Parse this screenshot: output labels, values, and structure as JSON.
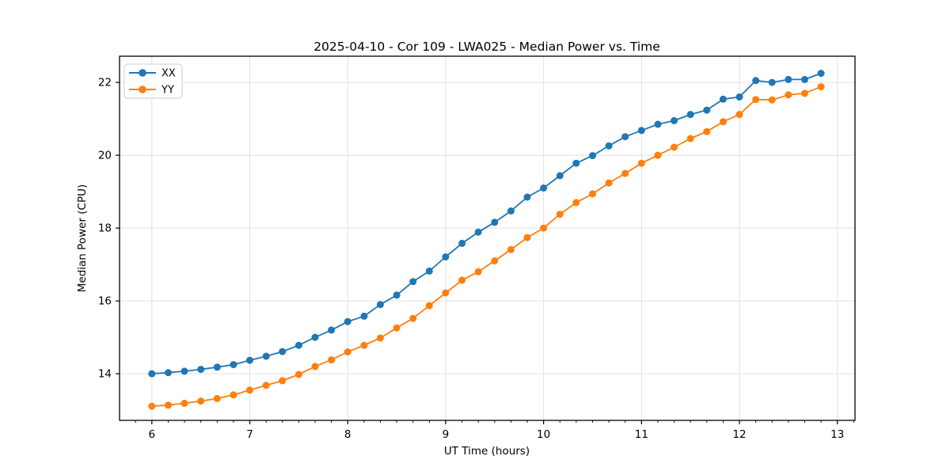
{
  "title": "2025-04-10 - Cor 109 - LWA025 - Median Power vs. Time",
  "colors": {
    "series_xx": "#1f77b4",
    "series_yy": "#ff7f0e",
    "grid": "#e0e0e0",
    "spine": "#000000",
    "legend_border": "#cccccc",
    "background": "#ffffff"
  },
  "legend": {
    "items": [
      {
        "label": "XX",
        "color": "#1f77b4"
      },
      {
        "label": "YY",
        "color": "#ff7f0e"
      }
    ]
  },
  "chart_data": {
    "type": "line",
    "title": "2025-04-10 - Cor 109 - LWA025 - Median Power vs. Time",
    "xlabel": "UT Time (hours)",
    "ylabel": "Median Power (CPU)",
    "xlim": [
      5.67,
      13.18
    ],
    "ylim": [
      12.72,
      22.72
    ],
    "x_ticks": [
      6,
      7,
      8,
      9,
      10,
      11,
      12,
      13
    ],
    "y_ticks": [
      14,
      16,
      18,
      20,
      22
    ],
    "x_minor_tick_step": 0.16667,
    "grid": true,
    "legend_position": "upper-left",
    "marker": "circle",
    "x": [
      6.0,
      6.167,
      6.333,
      6.5,
      6.667,
      6.833,
      7.0,
      7.167,
      7.333,
      7.5,
      7.667,
      7.833,
      8.0,
      8.167,
      8.333,
      8.5,
      8.667,
      8.833,
      9.0,
      9.167,
      9.333,
      9.5,
      9.667,
      9.833,
      10.0,
      10.167,
      10.333,
      10.5,
      10.667,
      10.833,
      11.0,
      11.167,
      11.333,
      11.5,
      11.667,
      11.833,
      12.0,
      12.167,
      12.333,
      12.5,
      12.667,
      12.833
    ],
    "series": [
      {
        "name": "XX",
        "color": "#1f77b4",
        "values": [
          14.0,
          14.03,
          14.07,
          14.12,
          14.18,
          14.25,
          14.37,
          14.48,
          14.61,
          14.78,
          15.0,
          15.2,
          15.43,
          15.58,
          15.9,
          16.16,
          16.53,
          16.82,
          17.21,
          17.58,
          17.89,
          18.16,
          18.47,
          18.85,
          19.1,
          19.44,
          19.78,
          19.99,
          20.26,
          20.51,
          20.68,
          20.85,
          20.95,
          21.12,
          21.24,
          21.54,
          21.6,
          22.05,
          22.0,
          22.08,
          22.08,
          22.25
        ]
      },
      {
        "name": "YY",
        "color": "#ff7f0e",
        "values": [
          13.11,
          13.14,
          13.19,
          13.25,
          13.32,
          13.42,
          13.55,
          13.68,
          13.81,
          13.98,
          14.2,
          14.38,
          14.6,
          14.78,
          14.98,
          15.26,
          15.52,
          15.87,
          16.22,
          16.57,
          16.8,
          17.1,
          17.41,
          17.74,
          18.0,
          18.38,
          18.7,
          18.94,
          19.24,
          19.5,
          19.78,
          20.0,
          20.22,
          20.46,
          20.65,
          20.92,
          21.12,
          21.53,
          21.52,
          21.66,
          21.7,
          21.88
        ]
      }
    ]
  }
}
